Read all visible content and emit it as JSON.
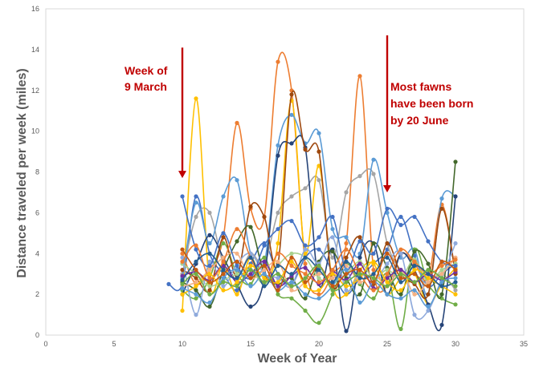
{
  "chart_data": {
    "type": "line",
    "xlabel": "Week of Year",
    "ylabel": "Distance traveled per week (miles)",
    "xlim": [
      0,
      35
    ],
    "ylim": [
      0,
      16
    ],
    "xticks": [
      "0",
      "5",
      "10",
      "15",
      "20",
      "25",
      "30",
      "35"
    ],
    "yticks": [
      "0",
      "2",
      "4",
      "6",
      "8",
      "10",
      "12",
      "14",
      "16"
    ],
    "grid": false,
    "legend": "none",
    "smoothed": true,
    "annotations": [
      {
        "lines": [
          "Week of",
          "9 March"
        ],
        "arrow_x": 10,
        "arrow_from_y": 14.1,
        "arrow_to_y": 7.7
      },
      {
        "lines": [
          "Most fawns",
          "have been born",
          "by 20 June"
        ],
        "arrow_x": 25,
        "arrow_from_y": 14.7,
        "arrow_to_y": 7.0
      }
    ],
    "x": [
      10,
      11,
      12,
      13,
      14,
      15,
      16,
      17,
      18,
      19,
      20,
      21,
      22,
      23,
      24,
      25,
      26,
      27,
      28,
      29,
      30
    ],
    "series": [
      {
        "color": "#4472c4",
        "values": [
          2.5,
          6.8,
          4.0,
          3.0,
          2.2,
          3.5,
          4.5,
          3.0,
          2.5,
          3.8,
          4.2,
          3.1,
          2.0,
          2.8,
          3.5,
          4.2,
          5.8,
          3.9,
          2.4,
          3.0,
          3.5
        ]
      },
      {
        "color": "#ed7d31",
        "values": [
          4.0,
          2.5,
          3.2,
          4.8,
          10.4,
          6.2,
          5.8,
          13.4,
          12.0,
          3.5,
          2.0,
          3.0,
          4.5,
          12.7,
          3.2,
          2.4,
          4.0,
          3.5,
          2.8,
          6.4,
          3.0
        ]
      },
      {
        "color": "#a5a5a5",
        "values": [
          3.0,
          5.8,
          6.0,
          3.5,
          2.8,
          4.0,
          3.5,
          6.0,
          6.8,
          7.2,
          7.6,
          3.8,
          7.0,
          7.8,
          7.9,
          4.5,
          3.2,
          3.0,
          2.5,
          3.0,
          2.2
        ]
      },
      {
        "color": "#ffc000",
        "values": [
          1.2,
          11.6,
          2.5,
          3.5,
          2.0,
          3.8,
          2.5,
          4.5,
          11.5,
          4.0,
          8.3,
          2.5,
          2.0,
          3.2,
          3.5,
          2.0,
          2.8,
          3.0,
          1.5,
          2.5,
          3.3
        ]
      },
      {
        "color": "#5b9bd5",
        "values": [
          2.8,
          6.5,
          4.5,
          6.8,
          7.6,
          4.0,
          3.5,
          9.3,
          10.8,
          9.4,
          9.9,
          5.2,
          4.8,
          4.0,
          8.6,
          6.0,
          3.8,
          4.2,
          2.0,
          6.7,
          6.8
        ]
      },
      {
        "color": "#70ad47",
        "values": [
          2.2,
          1.8,
          2.8,
          4.5,
          3.0,
          2.5,
          3.8,
          2.0,
          1.8,
          1.2,
          0.6,
          2.0,
          3.5,
          2.5,
          1.8,
          3.0,
          0.3,
          4.2,
          2.5,
          1.8,
          1.5
        ]
      },
      {
        "color": "#264478",
        "values": [
          2.0,
          3.5,
          4.9,
          3.8,
          2.5,
          1.4,
          2.8,
          8.8,
          9.4,
          9.2,
          2.5,
          4.2,
          0.2,
          3.8,
          4.5,
          2.0,
          4.0,
          3.2,
          1.5,
          0.5,
          6.8
        ]
      },
      {
        "color": "#9e480e",
        "values": [
          3.2,
          2.8,
          2.2,
          4.8,
          2.9,
          6.3,
          5.8,
          3.5,
          11.8,
          9.1,
          9.0,
          2.5,
          3.8,
          4.8,
          2.5,
          4.5,
          3.0,
          2.5,
          2.0,
          6.2,
          3.0
        ]
      },
      {
        "color": "#43682b",
        "values": [
          2.6,
          2.2,
          1.4,
          3.2,
          4.6,
          5.3,
          3.0,
          2.5,
          2.8,
          1.8,
          3.6,
          4.1,
          2.8,
          2.0,
          4.5,
          3.3,
          2.0,
          4.1,
          3.5,
          2.0,
          8.5
        ]
      },
      {
        "color": "#a9d18e",
        "values": [
          3.5,
          3.0,
          2.4,
          2.7,
          3.0,
          3.2,
          2.5,
          3.4,
          4.0,
          3.8,
          2.8,
          2.6,
          3.0,
          3.6,
          2.8,
          3.2,
          2.8,
          3.7,
          2.6,
          3.2,
          3.5
        ]
      },
      {
        "color": "#8faadc",
        "values": [
          3.8,
          1.0,
          3.6,
          2.4,
          3.5,
          4.0,
          3.0,
          2.8,
          2.4,
          4.2,
          3.5,
          4.8,
          2.2,
          3.0,
          2.6,
          3.5,
          4.0,
          1.0,
          1.2,
          2.8,
          4.5
        ]
      },
      {
        "color": "#f4b183",
        "values": [
          2.4,
          2.6,
          3.2,
          3.8,
          4.0,
          2.8,
          3.2,
          3.6,
          2.2,
          2.6,
          3.0,
          2.8,
          3.4,
          2.6,
          3.0,
          2.4,
          3.2,
          2.0,
          2.6,
          3.0,
          3.8
        ]
      },
      {
        "color": "#7030a0",
        "values": [
          2.9,
          3.1,
          2.7,
          3.4,
          2.6,
          3.0,
          3.6,
          2.4,
          2.9,
          3.3,
          2.5,
          3.1,
          2.7,
          3.5,
          2.3,
          2.8,
          3.2,
          2.6,
          3.0,
          2.7,
          3.1
        ]
      },
      {
        "color": "#4472c4",
        "values": [
          6.8,
          4.2,
          3.4,
          5.0,
          3.4,
          2.8,
          4.4,
          5.2,
          5.6,
          4.4,
          4.8,
          5.8,
          3.2,
          4.6,
          4.0,
          6.2,
          5.4,
          5.8,
          4.6,
          3.6,
          3.4
        ]
      },
      {
        "color": "#ed7d31",
        "values": [
          3.6,
          4.4,
          2.8,
          3.6,
          5.2,
          3.8,
          2.6,
          4.0,
          3.4,
          3.0,
          2.6,
          3.2,
          4.2,
          3.0,
          2.2,
          3.0,
          4.2,
          3.6,
          3.0,
          3.4,
          3.7
        ]
      },
      {
        "color": "#ffc000",
        "values": [
          2.0,
          2.4,
          3.0,
          2.2,
          2.6,
          3.4,
          2.8,
          2.6,
          3.6,
          2.4,
          2.2,
          3.0,
          2.4,
          2.8,
          3.6,
          2.6,
          2.2,
          3.2,
          2.8,
          2.4,
          2.0
        ]
      },
      {
        "color": "#5b9bd5",
        "values": [
          2.3,
          2.0,
          1.6,
          2.8,
          3.2,
          2.4,
          3.0,
          2.2,
          2.6,
          2.0,
          1.8,
          2.4,
          3.2,
          1.6,
          2.6,
          2.0,
          1.8,
          2.2,
          1.4,
          2.6,
          2.8
        ]
      },
      {
        "color": "#255e91",
        "values": [
          2.7,
          3.6,
          4.0,
          3.2,
          2.8,
          3.8,
          2.4,
          3.4,
          3.0,
          3.8,
          3.2,
          2.6,
          3.6,
          2.8,
          3.0,
          3.8,
          2.6,
          3.4,
          3.0,
          2.4,
          2.6
        ]
      },
      {
        "color": "#c55a11",
        "values": [
          4.2,
          3.2,
          2.6,
          3.0,
          3.6,
          2.8,
          3.4,
          2.2,
          3.8,
          2.6,
          3.4,
          2.4,
          3.0,
          3.2,
          2.6,
          4.0,
          2.8,
          3.0,
          2.4,
          3.6,
          3.2
        ]
      },
      {
        "color": "#70ad47",
        "values": [
          2.5,
          3.0,
          2.0,
          2.6,
          2.4,
          3.2,
          2.6,
          3.0,
          2.4,
          2.8,
          3.4,
          2.2,
          2.6,
          3.0,
          2.8,
          2.4,
          3.0,
          2.6,
          3.2,
          2.8,
          2.4
        ]
      }
    ],
    "extra_points": [
      {
        "x": 9,
        "y": 2.5,
        "series_index": 0
      }
    ]
  }
}
